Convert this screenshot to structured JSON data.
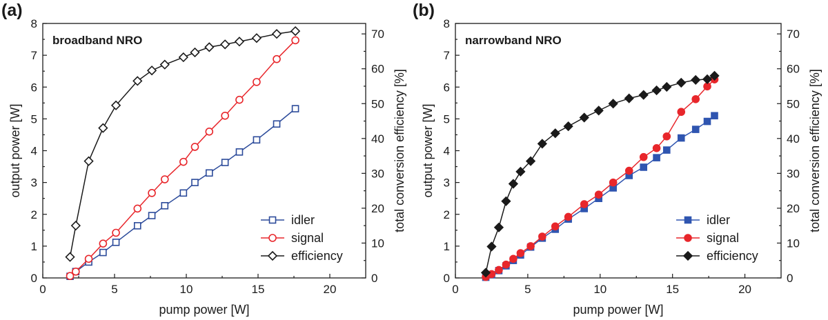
{
  "chart_data": [
    {
      "type": "line",
      "panel_label": "(a)",
      "title": "broadband NRO",
      "xlabel": "pump power [W]",
      "ylabel": "output power [W]",
      "y2label": "total conversion efficiency [%]",
      "xlim": [
        0,
        22.5
      ],
      "ylim": [
        0,
        8
      ],
      "y2lim": [
        0,
        73
      ],
      "xticks": [
        0,
        5,
        10,
        15,
        20
      ],
      "yticks": [
        0,
        1,
        2,
        3,
        4,
        5,
        6,
        7,
        8
      ],
      "y2ticks": [
        0,
        10,
        20,
        30,
        40,
        50,
        60,
        70
      ],
      "marker_style": "open",
      "legend_position": "bottom-right",
      "series": [
        {
          "name": "idler",
          "axis": "left",
          "color": "#2b4a9a",
          "marker": "square",
          "x": [
            1.9,
            2.3,
            3.2,
            4.2,
            5.1,
            6.6,
            7.6,
            8.5,
            9.8,
            10.6,
            11.6,
            12.7,
            13.7,
            14.9,
            16.3,
            17.6
          ],
          "y": [
            0.05,
            0.2,
            0.5,
            0.8,
            1.12,
            1.64,
            1.96,
            2.27,
            2.67,
            3.0,
            3.3,
            3.63,
            3.96,
            4.34,
            4.84,
            5.32
          ]
        },
        {
          "name": "signal",
          "axis": "left",
          "color": "#e8262b",
          "marker": "circle",
          "x": [
            1.9,
            2.3,
            3.2,
            4.2,
            5.1,
            6.6,
            7.6,
            8.5,
            9.8,
            10.6,
            11.6,
            12.7,
            13.7,
            14.9,
            16.3,
            17.6
          ],
          "y": [
            0.06,
            0.2,
            0.6,
            1.08,
            1.42,
            2.18,
            2.67,
            3.1,
            3.65,
            4.12,
            4.6,
            5.1,
            5.6,
            6.16,
            6.88,
            7.47
          ]
        },
        {
          "name": "efficiency",
          "axis": "right",
          "color": "#1a1a1a",
          "marker": "diamond",
          "x": [
            1.9,
            2.3,
            3.2,
            4.2,
            5.1,
            6.6,
            7.6,
            8.5,
            9.8,
            10.6,
            11.6,
            12.7,
            13.7,
            14.9,
            16.3,
            17.6
          ],
          "y": [
            6,
            15,
            33.5,
            43,
            49.5,
            56.5,
            59.5,
            61.2,
            63.3,
            64.7,
            66.2,
            67,
            67.8,
            68.8,
            70,
            70.8
          ]
        }
      ]
    },
    {
      "type": "line",
      "panel_label": "(b)",
      "title": "narrowband NRO",
      "xlabel": "pump power [W]",
      "ylabel": "output power [W]",
      "y2label": "total conversion efficiency [%]",
      "xlim": [
        0,
        22.5
      ],
      "ylim": [
        0,
        8
      ],
      "y2lim": [
        0,
        73
      ],
      "xticks": [
        0,
        5,
        10,
        15,
        20
      ],
      "yticks": [
        0,
        1,
        2,
        3,
        4,
        5,
        6,
        7,
        8
      ],
      "y2ticks": [
        0,
        10,
        20,
        30,
        40,
        50,
        60,
        70
      ],
      "marker_style": "filled",
      "legend_position": "bottom-right",
      "series": [
        {
          "name": "idler",
          "axis": "left",
          "color": "#2f55b0",
          "marker": "square",
          "x": [
            2.1,
            2.5,
            3.0,
            3.5,
            4.0,
            4.5,
            5.2,
            6.0,
            6.9,
            7.8,
            8.9,
            9.9,
            10.9,
            12.0,
            13.0,
            13.9,
            14.6,
            15.6,
            16.6,
            17.4,
            17.9
          ],
          "y": [
            0.02,
            0.1,
            0.23,
            0.38,
            0.55,
            0.72,
            0.97,
            1.25,
            1.53,
            1.85,
            2.18,
            2.5,
            2.83,
            3.22,
            3.48,
            3.78,
            4.02,
            4.4,
            4.67,
            4.92,
            5.1
          ],
          "labeled_y": []
        },
        {
          "name": "signal",
          "axis": "left",
          "color": "#e8262b",
          "marker": "circle",
          "x": [
            2.1,
            2.5,
            3.0,
            3.5,
            4.0,
            4.5,
            5.2,
            6.0,
            6.9,
            7.8,
            8.9,
            9.9,
            10.9,
            12.0,
            13.0,
            13.9,
            14.6,
            15.6,
            16.6,
            17.4,
            17.9
          ],
          "y": [
            0.03,
            0.12,
            0.25,
            0.42,
            0.6,
            0.78,
            1.0,
            1.3,
            1.62,
            1.92,
            2.32,
            2.62,
            3.0,
            3.37,
            3.8,
            4.08,
            4.45,
            5.22,
            5.62,
            6.02,
            6.24
          ]
        },
        {
          "name": "efficiency",
          "axis": "right",
          "color": "#1a1a1a",
          "marker": "diamond",
          "x": [
            2.1,
            2.5,
            3.0,
            3.5,
            4.0,
            4.5,
            5.2,
            6.0,
            6.9,
            7.8,
            8.9,
            9.9,
            10.9,
            12.0,
            13.0,
            13.9,
            14.6,
            15.6,
            16.6,
            17.4,
            17.9
          ],
          "y": [
            1.5,
            9,
            14.5,
            22,
            27,
            30.5,
            33.5,
            38.5,
            41.5,
            43.5,
            46,
            48,
            50,
            51.5,
            52.5,
            53.8,
            54.8,
            56,
            56.8,
            57,
            58
          ]
        }
      ]
    }
  ]
}
